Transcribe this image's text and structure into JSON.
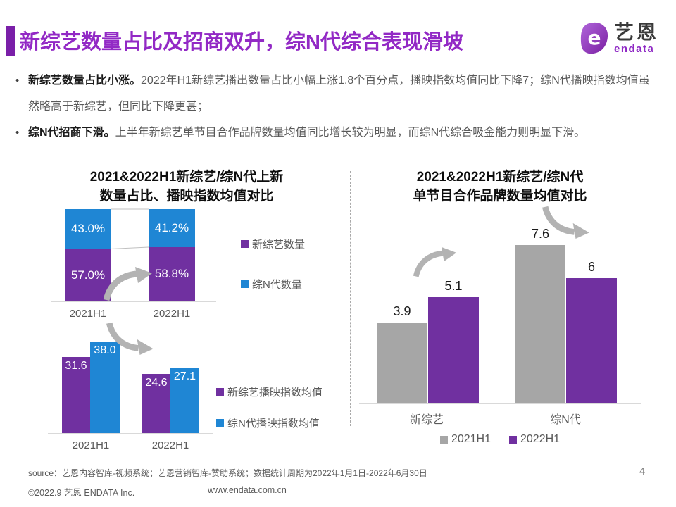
{
  "header": {
    "title": "新综艺数量占比及招商双升，综N代综合表现滑坡",
    "title_color": "#9229C5",
    "accent_color": "#7A1FA8",
    "logo": {
      "brand_cn": "艺恩",
      "brand_en": "endata",
      "brand_color": "#8E28C4"
    }
  },
  "bullets": [
    {
      "lead": "新综艺数量占比小涨。",
      "text": "2022年H1新综艺播出数量占比小幅上涨1.8个百分点，播映指数均值同比下降7；综N代播映指数均值虽然略高于新综艺，但同比下降更甚；"
    },
    {
      "lead": "综N代招商下滑。",
      "text": "上半年新综艺单节目合作品牌数量均值同比增长较为明显，而综N代综合吸金能力则明显下滑。"
    }
  ],
  "colors": {
    "purple": "#7030A0",
    "blue": "#1F86D4",
    "gray": "#A6A6A6",
    "arrow_gray": "#B3B3B3",
    "axis_gray": "#D9D9D9"
  },
  "chart_data": [
    {
      "id": "share-stacked",
      "type": "bar",
      "subtype": "stacked-100",
      "title": "2021&2022H1新综艺/综N代上新 数量占比、播映指数均值对比",
      "title_line1": "2021&2022H1新综艺/综N代上新",
      "title_line2": "数量占比、播映指数均值对比",
      "categories": [
        "2021H1",
        "2022H1"
      ],
      "series": [
        {
          "name": "新综艺数量",
          "color": "#7030A0",
          "values": [
            57.0,
            58.8
          ],
          "labels": [
            "57.0%",
            "58.8%"
          ]
        },
        {
          "name": "综N代数量",
          "color": "#1F86D4",
          "values": [
            43.0,
            41.2
          ],
          "labels": [
            "43.0%",
            "41.2%"
          ]
        }
      ],
      "ylim": [
        0,
        100
      ],
      "legend_position": "right",
      "grid": false
    },
    {
      "id": "play-index-grouped",
      "type": "bar",
      "title": "2021&2022H1新综艺/综N代播映指数均值对比",
      "categories": [
        "2021H1",
        "2022H1"
      ],
      "series": [
        {
          "name": "新综艺播映指数均值",
          "color": "#7030A0",
          "values": [
            31.6,
            24.6
          ],
          "labels": [
            "31.6",
            "24.6"
          ]
        },
        {
          "name": "综N代播映指数均值",
          "color": "#1F86D4",
          "values": [
            38.0,
            27.1
          ],
          "labels": [
            "38.0",
            "27.1"
          ]
        }
      ],
      "ylim": [
        0,
        45
      ],
      "legend_position": "right",
      "grid": false
    },
    {
      "id": "brand-count-grouped",
      "type": "bar",
      "title": "2021&2022H1新综艺/综N代 单节目合作品牌数量均值对比",
      "title_line1": "2021&2022H1新综艺/综N代",
      "title_line2": "单节目合作品牌数量均值对比",
      "categories": [
        "新综艺",
        "综N代"
      ],
      "series": [
        {
          "name": "2021H1",
          "color": "#A6A6A6",
          "values": [
            3.9,
            7.6
          ],
          "labels": [
            "3.9",
            "7.6"
          ]
        },
        {
          "name": "2022H1",
          "color": "#7030A0",
          "values": [
            5.1,
            6
          ],
          "labels": [
            "5.1",
            "6"
          ]
        }
      ],
      "ylim": [
        0,
        8
      ],
      "legend_position": "bottom",
      "grid": false
    }
  ],
  "footer": {
    "source": "source：艺恩内容智库-视频系统；艺恩营销智库-赞助系统；数据统计周期为2022年1月1日-2022年6月30日",
    "copyright": "©2022.9 艺恩 ENDATA Inc.",
    "website": "www.endata.com.cn",
    "page_number": "4"
  }
}
